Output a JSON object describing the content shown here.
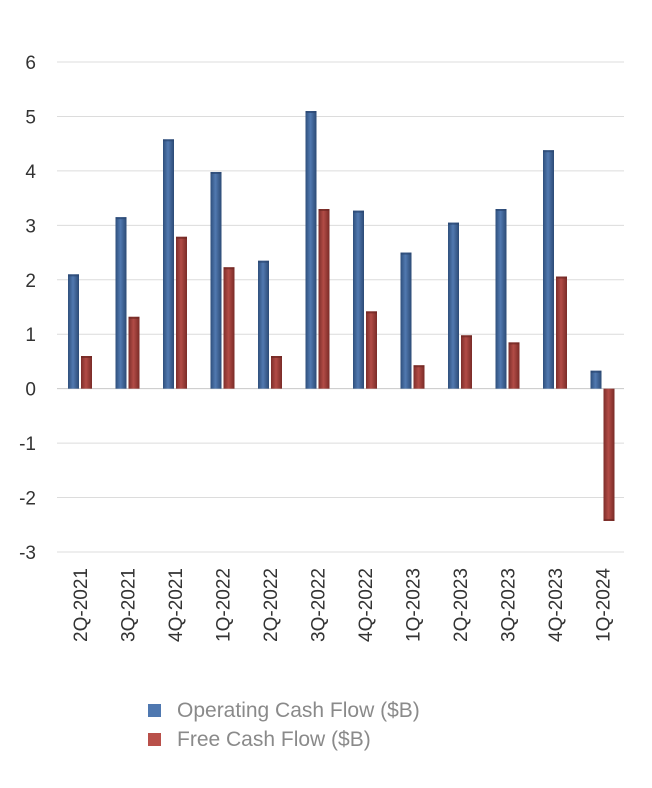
{
  "chart_data": {
    "type": "bar",
    "categories": [
      "2Q-2021",
      "3Q-2021",
      "4Q-2021",
      "1Q-2022",
      "2Q-2022",
      "3Q-2022",
      "4Q-2022",
      "1Q-2023",
      "2Q-2023",
      "3Q-2023",
      "4Q-2023",
      "1Q-2024"
    ],
    "series": [
      {
        "name": "Operating Cash Flow ($B)",
        "color": "#3f6699",
        "values": [
          2.1,
          3.15,
          4.58,
          3.98,
          2.35,
          5.1,
          3.27,
          2.5,
          3.05,
          3.3,
          4.38,
          0.33
        ]
      },
      {
        "name": "Free Cash Flow ($B)",
        "color": "#a23f3a",
        "values": [
          0.6,
          1.32,
          2.79,
          2.23,
          0.6,
          3.3,
          1.42,
          0.43,
          0.98,
          0.85,
          2.06,
          -2.43
        ]
      }
    ],
    "ylim": [
      -3,
      6
    ],
    "yticks": [
      6,
      5,
      4,
      3,
      2,
      1,
      0,
      -1,
      -2,
      -3
    ],
    "ytick_labels": [
      "6",
      "5",
      "4",
      "3",
      "2",
      "1",
      "0",
      "-1",
      "-2",
      "-3"
    ],
    "grid": true,
    "legend_position": "bottom"
  },
  "legend_swatch_colors": {
    "operating": "#4f78b0",
    "free": "#b9504a"
  }
}
